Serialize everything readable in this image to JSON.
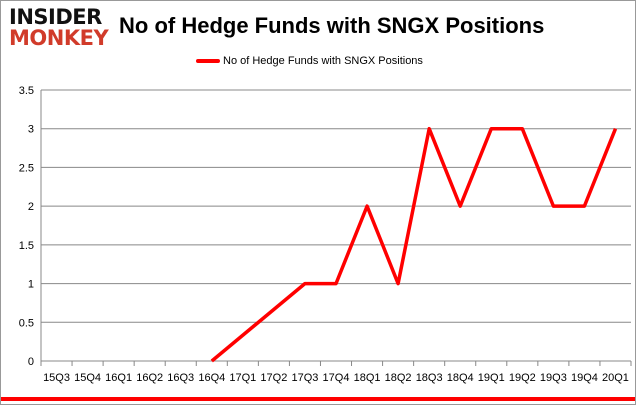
{
  "logo": {
    "line1": "INSIDER",
    "line2": "MONKEY"
  },
  "chart_data": {
    "type": "line",
    "title": "No of Hedge Funds with SNGX Positions",
    "legend": [
      "No of Hedge Funds with SNGX Positions"
    ],
    "legend_placement": "top-center",
    "categories": [
      "15Q3",
      "15Q4",
      "16Q1",
      "16Q2",
      "16Q3",
      "16Q4",
      "17Q1",
      "17Q2",
      "17Q3",
      "17Q4",
      "18Q1",
      "18Q2",
      "18Q3",
      "18Q4",
      "19Q1",
      "19Q2",
      "19Q3",
      "19Q4",
      "20Q1"
    ],
    "series": [
      {
        "name": "No of Hedge Funds with SNGX Positions",
        "color": "#ff0000",
        "values": [
          null,
          null,
          null,
          null,
          null,
          0,
          null,
          null,
          1,
          1,
          2,
          1,
          3,
          2,
          3,
          3,
          2,
          2,
          3
        ]
      }
    ],
    "yticks": [
      "0",
      "0.5",
      "1",
      "1.5",
      "2",
      "2.5",
      "3",
      "3.5"
    ],
    "ylim": [
      0,
      3.5
    ],
    "grid": true,
    "xlabel": "",
    "ylabel": ""
  }
}
